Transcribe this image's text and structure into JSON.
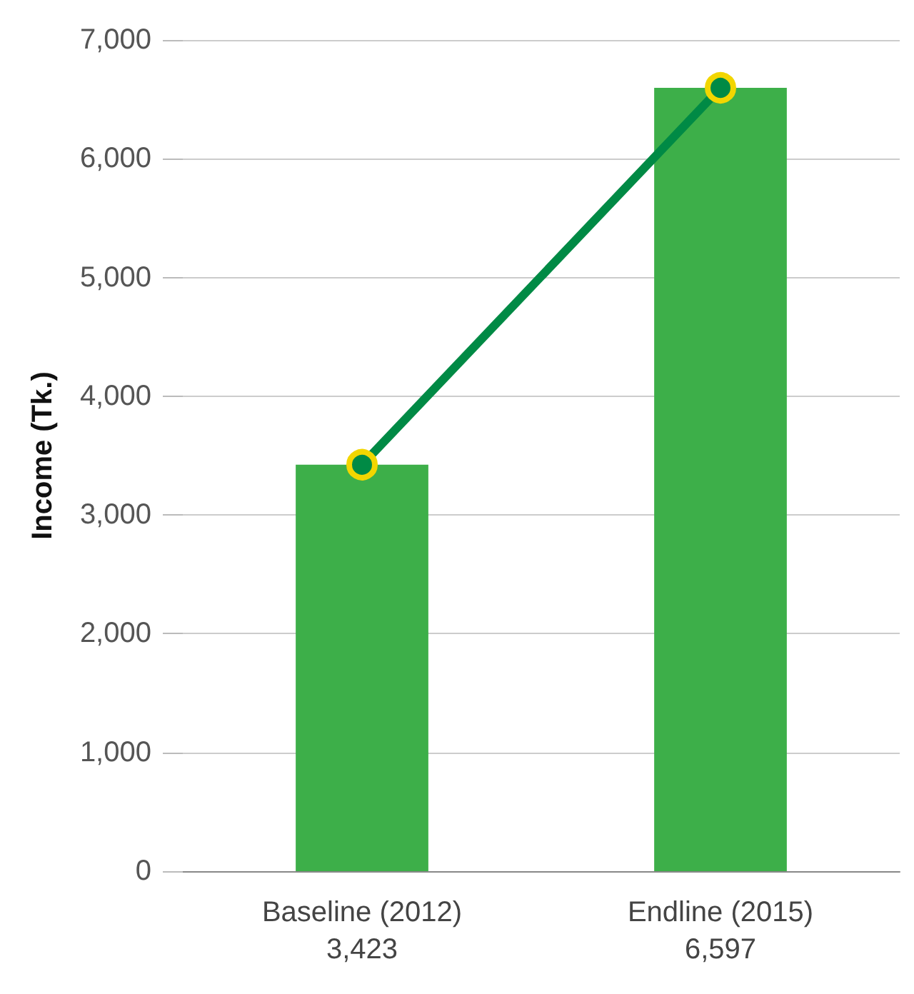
{
  "chart_data": {
    "type": "bar",
    "ylabel": "Income (Tk.)",
    "categories": [
      "Baseline (2012)",
      "Endline (2015)"
    ],
    "series": [
      {
        "color": "#3daf49",
        "values": [
          3423,
          6597
        ],
        "value_labels": [
          "3,423",
          "6,597"
        ]
      },
      {
        "type": "line",
        "color": "#008a45",
        "values": [
          3423,
          6597
        ]
      }
    ],
    "ylim": [
      0,
      7000
    ],
    "yticks": [
      0,
      {
        "value": 1000,
        "label": "1,000"
      },
      {
        "value": 2000,
        "label": "2,000"
      },
      {
        "value": 3000,
        "label": "3,000"
      },
      {
        "value": 4000,
        "label": "4,000"
      },
      {
        "value": 5000,
        "label": "5,000"
      },
      {
        "value": 6000,
        "label": "6,000"
      },
      {
        "value": 7000,
        "label": "7,000"
      }
    ],
    "grid": "y",
    "marker": "circle",
    "line_style": "solid"
  }
}
